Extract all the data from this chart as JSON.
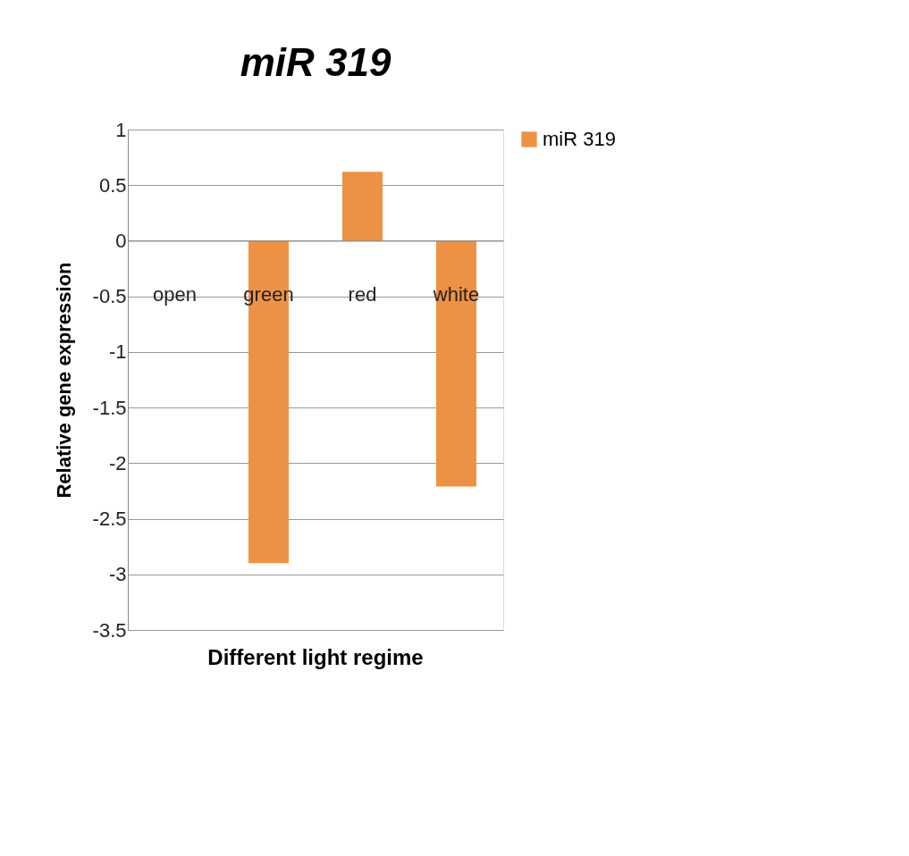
{
  "chart_data": {
    "type": "bar",
    "title": "miR 319",
    "xlabel": "Different light regime",
    "ylabel": "Relative gene expression",
    "categories": [
      "open",
      "green",
      "red",
      "white"
    ],
    "series": [
      {
        "name": "miR 319",
        "color": "#ed9245",
        "values": [
          0,
          -2.9,
          0.62,
          -2.21
        ]
      }
    ],
    "ylim": [
      -3.5,
      1
    ],
    "yticks": [
      -3.5,
      -3,
      -2.5,
      -2,
      -1.5,
      -1,
      -0.5,
      0,
      0.5,
      1
    ],
    "grid": "y",
    "legend": "right"
  }
}
